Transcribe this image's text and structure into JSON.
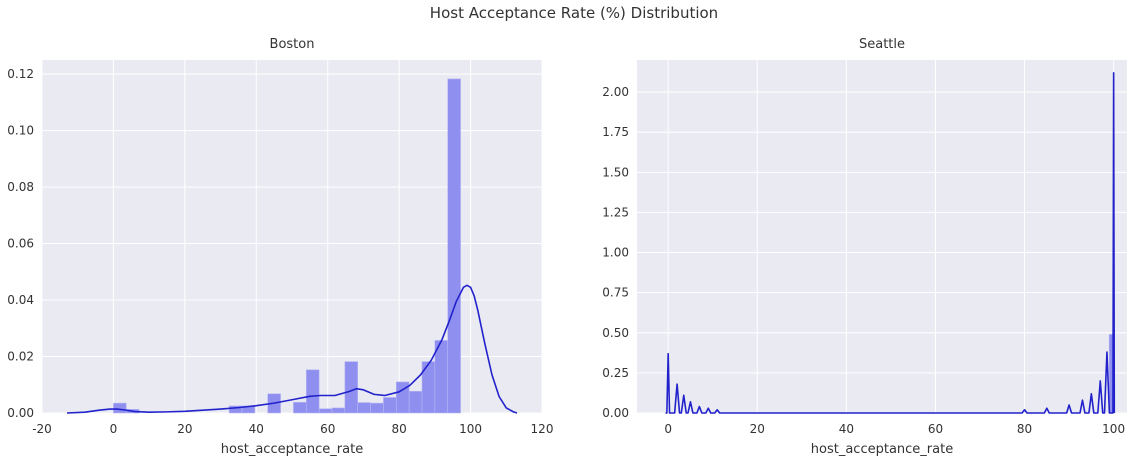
{
  "figure": {
    "title": "Host Acceptance Rate (%) Distribution"
  },
  "colors": {
    "panel_bg": "#eaeaf2",
    "grid": "#ffffff",
    "bar": "#8f8ff0",
    "kde": "#2222cc",
    "text": "#333333"
  },
  "chart_data": [
    {
      "type": "bar",
      "subtype": "histogram_with_kde",
      "title": "Boston",
      "xlabel": "host_acceptance_rate",
      "ylabel": "",
      "xlim": [
        -20,
        120
      ],
      "ylim": [
        0,
        0.125
      ],
      "xticks": [
        -20,
        0,
        20,
        40,
        60,
        80,
        100,
        120
      ],
      "yticks": [
        0.0,
        0.02,
        0.04,
        0.06,
        0.08,
        0.1,
        0.12
      ],
      "ytick_labels": [
        "0.00",
        "0.02",
        "0.04",
        "0.06",
        "0.08",
        "0.10",
        "0.12"
      ],
      "grid": true,
      "bin_width": 3.6,
      "bins": [
        {
          "x0": 0.0,
          "value": 0.0035
        },
        {
          "x0": 3.6,
          "value": 0.0013
        },
        {
          "x0": 32.4,
          "value": 0.0025
        },
        {
          "x0": 36.0,
          "value": 0.0025
        },
        {
          "x0": 43.2,
          "value": 0.0068
        },
        {
          "x0": 50.4,
          "value": 0.0038
        },
        {
          "x0": 54.0,
          "value": 0.0153
        },
        {
          "x0": 57.6,
          "value": 0.0015
        },
        {
          "x0": 61.2,
          "value": 0.0018
        },
        {
          "x0": 64.8,
          "value": 0.0182
        },
        {
          "x0": 68.4,
          "value": 0.0037
        },
        {
          "x0": 72.0,
          "value": 0.0035
        },
        {
          "x0": 75.6,
          "value": 0.0055
        },
        {
          "x0": 79.2,
          "value": 0.011
        },
        {
          "x0": 82.8,
          "value": 0.0077
        },
        {
          "x0": 86.4,
          "value": 0.0182
        },
        {
          "x0": 90.0,
          "value": 0.0257
        },
        {
          "x0": 93.6,
          "value": 0.1183
        },
        {
          "x0": 97.2,
          "value": 0.0
        }
      ],
      "kde": {
        "x": [
          -13,
          -8,
          -4,
          -1,
          1,
          3,
          6,
          10,
          15,
          20,
          25,
          30,
          35,
          40,
          45,
          50,
          55,
          58,
          62,
          66,
          68,
          70,
          73,
          76,
          80,
          83,
          86,
          89,
          92,
          94,
          96,
          98,
          99,
          100,
          101,
          102,
          104,
          106,
          108,
          110,
          112,
          113
        ],
        "y": [
          0.0,
          0.0003,
          0.001,
          0.0014,
          0.0014,
          0.0011,
          0.0005,
          0.0003,
          0.0004,
          0.0006,
          0.001,
          0.0014,
          0.0019,
          0.0026,
          0.0035,
          0.0047,
          0.0059,
          0.0062,
          0.0062,
          0.0076,
          0.0086,
          0.0082,
          0.0066,
          0.0062,
          0.0075,
          0.0098,
          0.0135,
          0.0187,
          0.026,
          0.0325,
          0.0395,
          0.0445,
          0.0452,
          0.0445,
          0.0415,
          0.0365,
          0.0245,
          0.0135,
          0.0058,
          0.0018,
          0.0004,
          0.0
        ]
      }
    },
    {
      "type": "bar",
      "subtype": "histogram_with_kde",
      "title": "Seattle",
      "xlabel": "host_acceptance_rate",
      "ylabel": "",
      "xlim": [
        -7,
        103
      ],
      "ylim": [
        0,
        2.2
      ],
      "xticks": [
        0,
        20,
        40,
        60,
        80,
        100
      ],
      "yticks": [
        0.0,
        0.25,
        0.5,
        0.75,
        1.0,
        1.25,
        1.5,
        1.75,
        2.0
      ],
      "ytick_labels": [
        "0.00",
        "0.25",
        "0.50",
        "0.75",
        "1.00",
        "1.25",
        "1.50",
        "1.75",
        "2.00"
      ],
      "grid": true,
      "bin_width": 1.0,
      "bins": [
        {
          "x0": 99.0,
          "value": 0.49
        }
      ],
      "kde": {
        "peaks": [
          {
            "x": 0,
            "y": 0.37
          },
          {
            "x": 2,
            "y": 0.18
          },
          {
            "x": 3.5,
            "y": 0.11
          },
          {
            "x": 5,
            "y": 0.07
          },
          {
            "x": 7,
            "y": 0.04
          },
          {
            "x": 9,
            "y": 0.03
          },
          {
            "x": 11,
            "y": 0.02
          },
          {
            "x": 80,
            "y": 0.02
          },
          {
            "x": 85,
            "y": 0.03
          },
          {
            "x": 90,
            "y": 0.05
          },
          {
            "x": 93,
            "y": 0.08
          },
          {
            "x": 95,
            "y": 0.12
          },
          {
            "x": 97,
            "y": 0.2
          },
          {
            "x": 98.5,
            "y": 0.38
          },
          {
            "x": 100,
            "y": 2.12
          }
        ]
      }
    }
  ]
}
